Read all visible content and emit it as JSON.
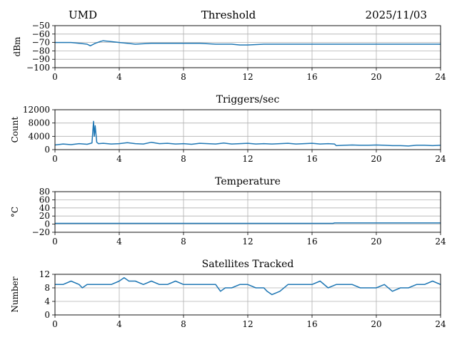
{
  "header": {
    "left": "UMD",
    "title": "Threshold",
    "date": "2025/11/03"
  },
  "colors": {
    "series": "#1f77b4",
    "grid": "#b0b0b0"
  },
  "chart_data": [
    {
      "type": "line",
      "title": "",
      "xlabel": "",
      "ylabel": "dBm",
      "xlim": [
        0,
        24
      ],
      "ylim": [
        -100,
        -50
      ],
      "xticks": [
        0,
        4,
        8,
        12,
        16,
        20,
        24
      ],
      "yticks": [
        -100,
        -90,
        -80,
        -70,
        -60,
        -50
      ],
      "grid": true,
      "series": [
        {
          "x": [
            0,
            1,
            1.5,
            2,
            2.2,
            2.5,
            2.8,
            3,
            3.5,
            4,
            4.5,
            5,
            6,
            7,
            8,
            9,
            10,
            11,
            11.5,
            12,
            13,
            14,
            15,
            16,
            17,
            18,
            19,
            20,
            21,
            22,
            23,
            24
          ],
          "y": [
            -70,
            -70,
            -71,
            -72,
            -74,
            -71,
            -69,
            -68,
            -69,
            -70,
            -71,
            -72,
            -71,
            -71,
            -71,
            -71,
            -72,
            -72,
            -73,
            -73,
            -72,
            -72,
            -72,
            -72,
            -72,
            -72,
            -72,
            -72,
            -72,
            -72,
            -72,
            -72
          ]
        }
      ]
    },
    {
      "type": "line",
      "title": "Triggers/sec",
      "xlabel": "",
      "ylabel": "Count",
      "xlim": [
        0,
        24
      ],
      "ylim": [
        0,
        12000
      ],
      "xticks": [
        0,
        4,
        8,
        12,
        16,
        20,
        24
      ],
      "yticks": [
        0,
        4000,
        8000,
        12000
      ],
      "grid": true,
      "series": [
        {
          "x": [
            0,
            0.5,
            1,
            1.5,
            2,
            2.3,
            2.4,
            2.45,
            2.5,
            2.6,
            2.7,
            3,
            3.5,
            4,
            4.5,
            5,
            5.5,
            6,
            6.5,
            7,
            7.5,
            8,
            8.5,
            9,
            9.5,
            10,
            10.5,
            11,
            11.5,
            12,
            12.5,
            13,
            13.5,
            14,
            14.5,
            15,
            15.5,
            16,
            16.5,
            17,
            17.4,
            17.5,
            18,
            18.5,
            19,
            19.5,
            20,
            20.5,
            21,
            21.5,
            22,
            22.5,
            23,
            23.5,
            24
          ],
          "y": [
            1400,
            1700,
            1500,
            1800,
            1600,
            2000,
            8500,
            4000,
            7200,
            2200,
            1800,
            1900,
            1700,
            1800,
            2100,
            1800,
            1700,
            2200,
            1800,
            1900,
            1700,
            1800,
            1600,
            1900,
            1800,
            1700,
            2000,
            1700,
            1800,
            1900,
            1700,
            1800,
            1700,
            1800,
            1900,
            1700,
            1800,
            1900,
            1700,
            1800,
            1700,
            1200,
            1300,
            1400,
            1300,
            1300,
            1400,
            1300,
            1200,
            1200,
            1100,
            1300,
            1300,
            1200,
            1300
          ]
        }
      ]
    },
    {
      "type": "line",
      "title": "Temperature",
      "xlabel": "",
      "ylabel": "°C",
      "xlim": [
        0,
        24
      ],
      "ylim": [
        -20,
        80
      ],
      "xticks": [
        0,
        4,
        8,
        12,
        16,
        20,
        24
      ],
      "yticks": [
        -20,
        0,
        20,
        40,
        60,
        80
      ],
      "grid": true,
      "series": [
        {
          "x": [
            0,
            4,
            8,
            12,
            16,
            17.3,
            17.4,
            20,
            24
          ],
          "y": [
            2,
            2,
            2,
            2,
            2,
            2,
            3,
            3,
            3
          ]
        }
      ]
    },
    {
      "type": "line",
      "title": "Satellites Tracked",
      "xlabel": "",
      "ylabel": "Number",
      "xlim": [
        0,
        24
      ],
      "ylim": [
        0,
        12
      ],
      "xticks": [
        0,
        4,
        8,
        12,
        16,
        20,
        24
      ],
      "yticks": [
        0,
        4,
        8,
        12
      ],
      "grid": true,
      "series": [
        {
          "x": [
            0,
            0.5,
            1,
            1.5,
            1.7,
            2,
            2.5,
            3,
            3.5,
            4,
            4.3,
            4.6,
            5,
            5.5,
            6,
            6.5,
            7,
            7.5,
            8,
            8.5,
            9,
            9.5,
            10,
            10.3,
            10.6,
            11,
            11.5,
            12,
            12.5,
            13,
            13.2,
            13.5,
            14,
            14.5,
            15,
            15.5,
            16,
            16.5,
            17,
            17.5,
            18,
            18.5,
            19,
            19.5,
            20,
            20.5,
            21,
            21.5,
            22,
            22.5,
            23,
            23.5,
            24
          ],
          "y": [
            9,
            9,
            10,
            9,
            8,
            9,
            9,
            9,
            9,
            10,
            11,
            10,
            10,
            9,
            10,
            9,
            9,
            10,
            9,
            9,
            9,
            9,
            9,
            7,
            8,
            8,
            9,
            9,
            8,
            8,
            7,
            6,
            7,
            9,
            9,
            9,
            9,
            10,
            8,
            9,
            9,
            9,
            8,
            8,
            8,
            9,
            7,
            8,
            8,
            9,
            9,
            10,
            9
          ]
        }
      ]
    }
  ]
}
